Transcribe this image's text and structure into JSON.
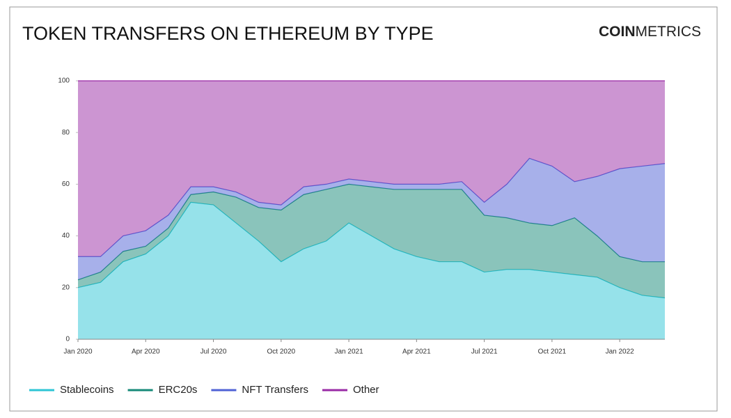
{
  "logo": {
    "bold": "COIN",
    "light": "METRICS"
  },
  "chart_data": {
    "type": "stacked-area",
    "title": "TOKEN TRANSFERS ON ETHEREUM BY TYPE",
    "x": [
      "2020-01",
      "2020-02",
      "2020-03",
      "2020-04",
      "2020-05",
      "2020-06",
      "2020-07",
      "2020-08",
      "2020-09",
      "2020-10",
      "2020-11",
      "2020-12",
      "2021-01",
      "2021-02",
      "2021-03",
      "2021-04",
      "2021-05",
      "2021-06",
      "2021-07",
      "2021-08",
      "2021-09",
      "2021-10",
      "2021-11",
      "2021-12",
      "2022-01",
      "2022-02",
      "2022-03"
    ],
    "xlim": [
      "2020-01",
      "2022-03"
    ],
    "xticks": [
      {
        "value": "2020-01",
        "label": "Jan 2020"
      },
      {
        "value": "2020-04",
        "label": "Apr 2020"
      },
      {
        "value": "2020-07",
        "label": "Jul 2020"
      },
      {
        "value": "2020-10",
        "label": "Oct 2020"
      },
      {
        "value": "2021-01",
        "label": "Jan 2021"
      },
      {
        "value": "2021-04",
        "label": "Apr 2021"
      },
      {
        "value": "2021-07",
        "label": "Jul 2021"
      },
      {
        "value": "2021-10",
        "label": "Oct 2021"
      },
      {
        "value": "2022-01",
        "label": "Jan 2022"
      }
    ],
    "ylim": [
      0,
      100
    ],
    "yticks": [
      0,
      20,
      40,
      60,
      80,
      100
    ],
    "series": [
      {
        "name": "Stablecoins",
        "color": "#2ec5d5",
        "values": [
          20,
          22,
          30,
          33,
          40,
          53,
          52,
          45,
          38,
          30,
          35,
          38,
          45,
          40,
          35,
          32,
          30,
          30,
          26,
          27,
          27,
          26,
          25,
          24,
          20,
          17,
          16
        ]
      },
      {
        "name": "ERC20s",
        "color": "#168a78",
        "values": [
          3,
          4,
          4,
          3,
          3,
          3,
          5,
          10,
          13,
          20,
          21,
          20,
          15,
          19,
          23,
          26,
          28,
          28,
          22,
          20,
          18,
          18,
          22,
          16,
          12,
          13,
          14
        ]
      },
      {
        "name": "NFT Transfers",
        "color": "#4f62d6",
        "values": [
          9,
          6,
          6,
          6,
          5,
          3,
          2,
          2,
          2,
          2,
          3,
          2,
          2,
          2,
          2,
          2,
          2,
          3,
          5,
          13,
          25,
          23,
          14,
          23,
          34,
          37,
          38
        ]
      },
      {
        "name": "Other",
        "color": "#9a2ba6",
        "values": [
          68,
          68,
          60,
          58,
          52,
          41,
          41,
          43,
          47,
          48,
          41,
          40,
          38,
          39,
          40,
          40,
          40,
          39,
          47,
          40,
          30,
          33,
          39,
          37,
          34,
          33,
          32
        ]
      }
    ]
  }
}
